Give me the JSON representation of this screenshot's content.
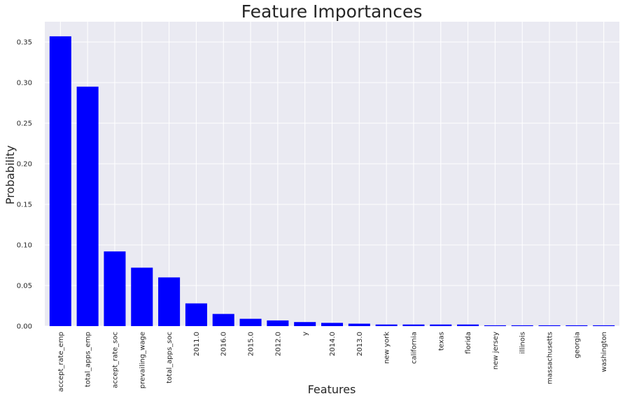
{
  "chart_data": {
    "type": "bar",
    "title": "Feature Importances",
    "xlabel": "Features",
    "ylabel": "Probability",
    "categories": [
      "accept_rate_emp",
      "total_apps_emp",
      "accept_rate_soc",
      "prevailing_wage",
      "total_apps_soc",
      "2011.0",
      "2016.0",
      "2015.0",
      "2012.0",
      "y",
      "2014.0",
      "2013.0",
      "new york",
      "california",
      "texas",
      "florida",
      "new jersey",
      "illinois",
      "massachusetts",
      "georgia",
      "washington"
    ],
    "values": [
      0.357,
      0.295,
      0.092,
      0.072,
      0.06,
      0.028,
      0.015,
      0.009,
      0.007,
      0.005,
      0.004,
      0.003,
      0.002,
      0.002,
      0.002,
      0.002,
      0.001,
      0.001,
      0.001,
      0.001,
      0.001
    ],
    "ylim": [
      0,
      0.375
    ],
    "yticks": [
      "0.00",
      "0.05",
      "0.10",
      "0.15",
      "0.20",
      "0.25",
      "0.30",
      "0.35"
    ],
    "bar_color": "#0000ff",
    "plot_background": "#eaeaf2",
    "grid": true
  }
}
